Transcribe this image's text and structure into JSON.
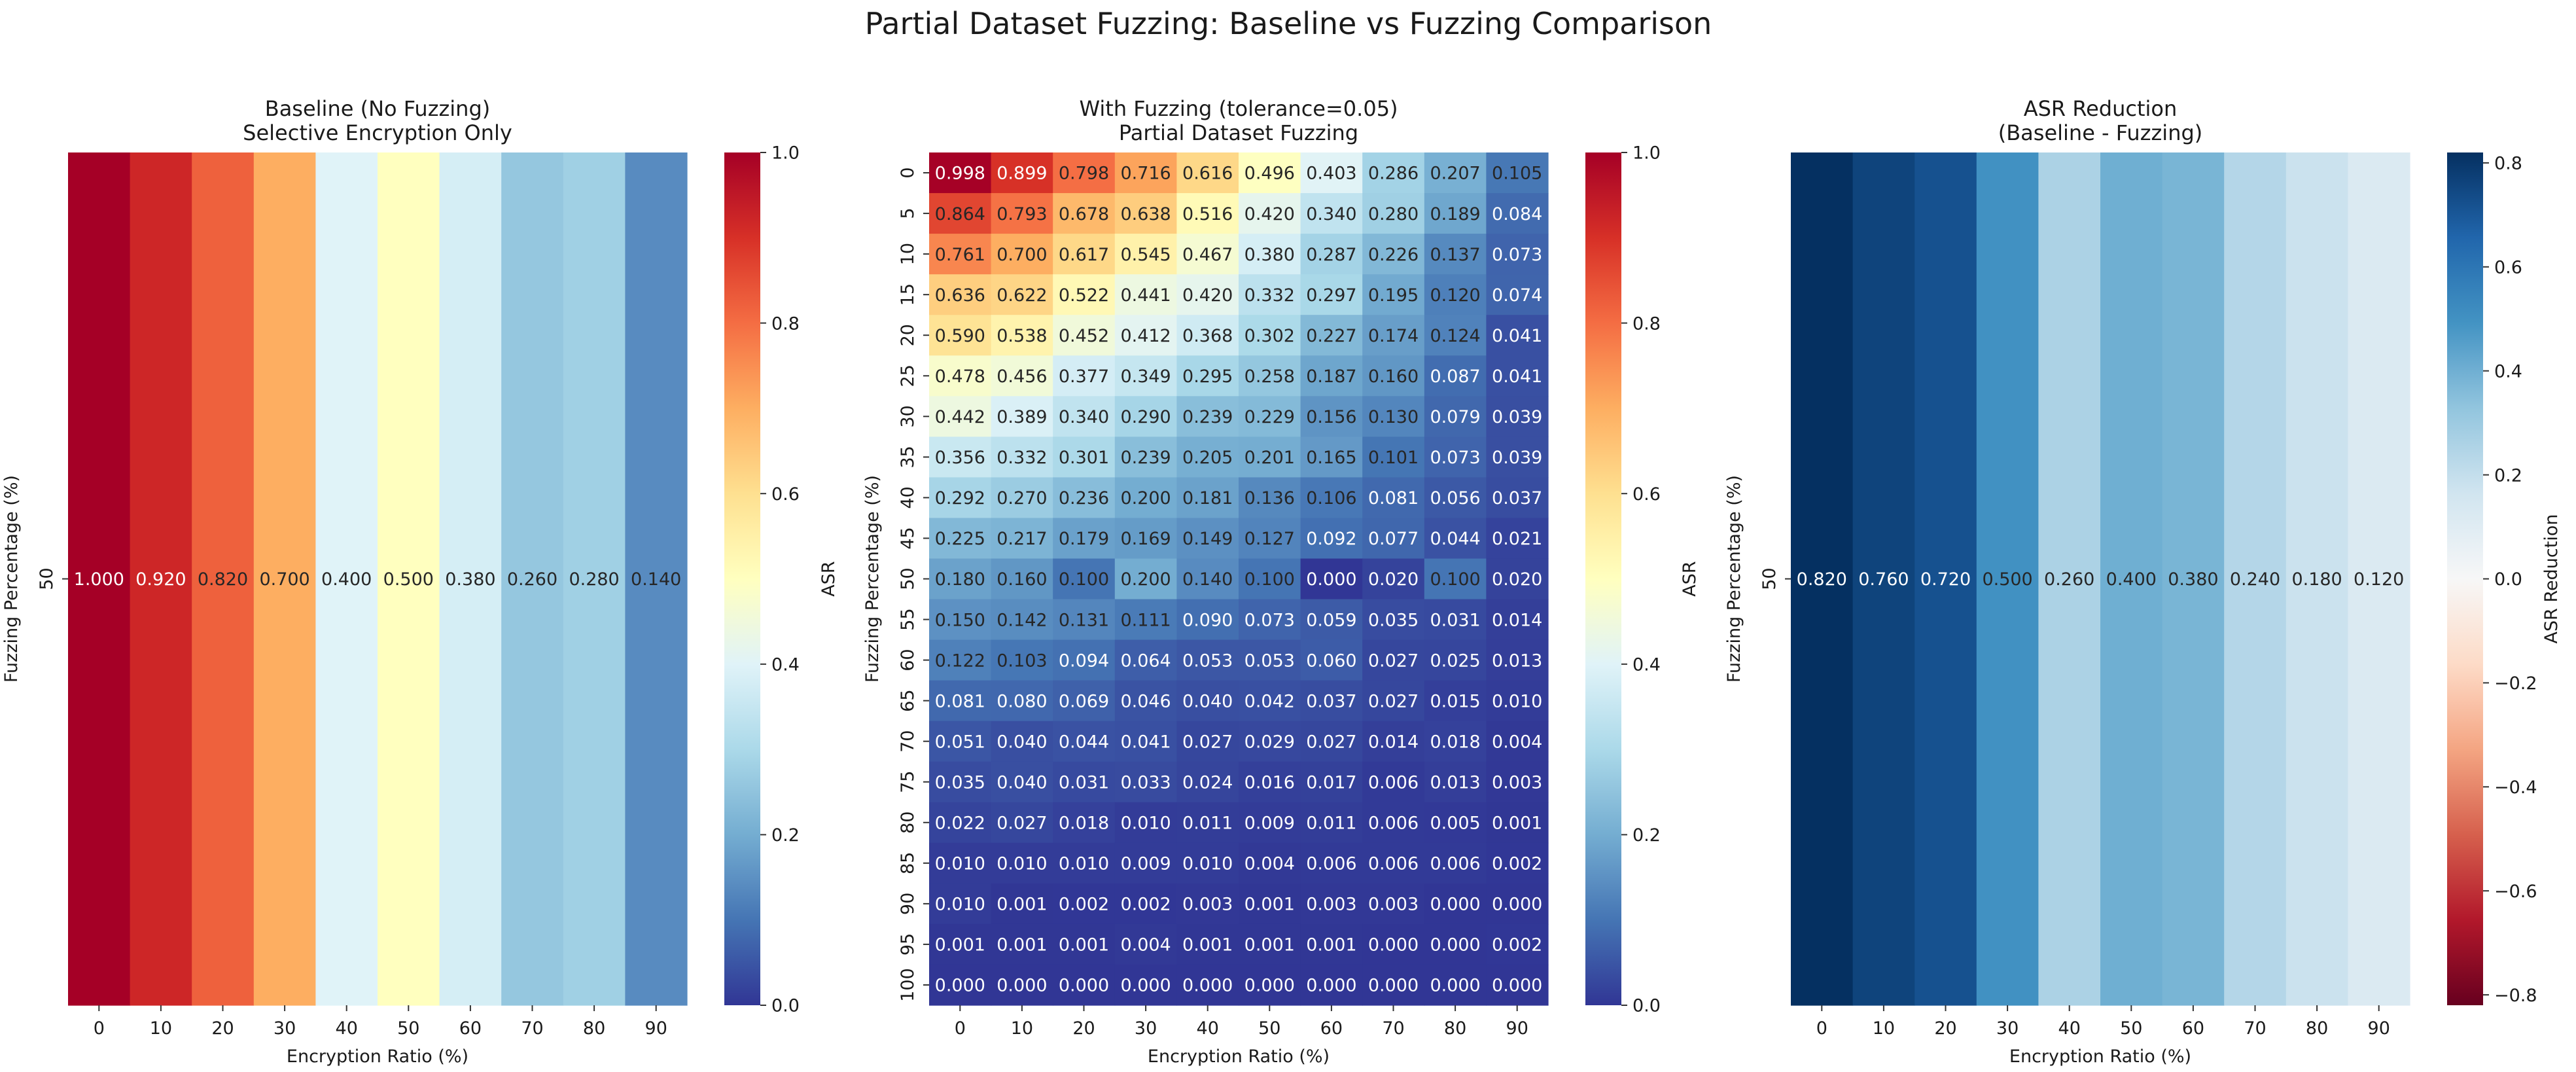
{
  "suptitle": "Partial Dataset Fuzzing: Baseline vs Fuzzing Comparison",
  "chart_data": [
    {
      "type": "heatmap",
      "title": "Baseline (No Fuzzing)\nSelective Encryption Only",
      "xlabel": "Encryption Ratio (%)",
      "ylabel": "Fuzzing Percentage (%)",
      "x": [
        0,
        10,
        20,
        30,
        40,
        50,
        60,
        70,
        80,
        90
      ],
      "y": [
        50
      ],
      "values": [
        [
          1.0,
          0.92,
          0.82,
          0.7,
          0.4,
          0.5,
          0.38,
          0.26,
          0.28,
          0.14
        ]
      ],
      "value_format": "0.000",
      "colormap": "RdYlBu_r",
      "vmin": 0.0,
      "vmax": 1.0,
      "colorbar_label": "ASR",
      "colorbar_ticks": [
        "0.0",
        "0.2",
        "0.4",
        "0.6",
        "0.8",
        "1.0"
      ]
    },
    {
      "type": "heatmap",
      "title": "With Fuzzing (tolerance=0.05)\nPartial Dataset Fuzzing",
      "xlabel": "Encryption Ratio (%)",
      "ylabel": "Fuzzing Percentage (%)",
      "x": [
        0,
        10,
        20,
        30,
        40,
        50,
        60,
        70,
        80,
        90
      ],
      "y": [
        0,
        5,
        10,
        15,
        20,
        25,
        30,
        35,
        40,
        45,
        50,
        55,
        60,
        65,
        70,
        75,
        80,
        85,
        90,
        95,
        100
      ],
      "values": [
        [
          0.998,
          0.899,
          0.798,
          0.716,
          0.616,
          0.496,
          0.403,
          0.286,
          0.207,
          0.105
        ],
        [
          0.864,
          0.793,
          0.678,
          0.638,
          0.516,
          0.42,
          0.34,
          0.28,
          0.189,
          0.084
        ],
        [
          0.761,
          0.7,
          0.617,
          0.545,
          0.467,
          0.38,
          0.287,
          0.226,
          0.137,
          0.073
        ],
        [
          0.636,
          0.622,
          0.522,
          0.441,
          0.42,
          0.332,
          0.297,
          0.195,
          0.12,
          0.074
        ],
        [
          0.59,
          0.538,
          0.452,
          0.412,
          0.368,
          0.302,
          0.227,
          0.174,
          0.124,
          0.041
        ],
        [
          0.478,
          0.456,
          0.377,
          0.349,
          0.295,
          0.258,
          0.187,
          0.16,
          0.087,
          0.041
        ],
        [
          0.442,
          0.389,
          0.34,
          0.29,
          0.239,
          0.229,
          0.156,
          0.13,
          0.079,
          0.039
        ],
        [
          0.356,
          0.332,
          0.301,
          0.239,
          0.205,
          0.201,
          0.165,
          0.101,
          0.073,
          0.039
        ],
        [
          0.292,
          0.27,
          0.236,
          0.2,
          0.181,
          0.136,
          0.106,
          0.081,
          0.056,
          0.037
        ],
        [
          0.225,
          0.217,
          0.179,
          0.169,
          0.149,
          0.127,
          0.092,
          0.077,
          0.044,
          0.021
        ],
        [
          0.18,
          0.16,
          0.1,
          0.2,
          0.14,
          0.1,
          0.0,
          0.02,
          0.1,
          0.02
        ],
        [
          0.15,
          0.142,
          0.131,
          0.111,
          0.09,
          0.073,
          0.059,
          0.035,
          0.031,
          0.014
        ],
        [
          0.122,
          0.103,
          0.094,
          0.064,
          0.053,
          0.053,
          0.06,
          0.027,
          0.025,
          0.013
        ],
        [
          0.081,
          0.08,
          0.069,
          0.046,
          0.04,
          0.042,
          0.037,
          0.027,
          0.015,
          0.01
        ],
        [
          0.051,
          0.04,
          0.044,
          0.041,
          0.027,
          0.029,
          0.027,
          0.014,
          0.018,
          0.004
        ],
        [
          0.035,
          0.04,
          0.031,
          0.033,
          0.024,
          0.016,
          0.017,
          0.006,
          0.013,
          0.003
        ],
        [
          0.022,
          0.027,
          0.018,
          0.01,
          0.011,
          0.009,
          0.011,
          0.006,
          0.005,
          0.001
        ],
        [
          0.01,
          0.01,
          0.01,
          0.009,
          0.01,
          0.004,
          0.006,
          0.006,
          0.006,
          0.002
        ],
        [
          0.01,
          0.001,
          0.002,
          0.002,
          0.003,
          0.001,
          0.003,
          0.003,
          0.0,
          0.0
        ],
        [
          0.001,
          0.001,
          0.001,
          0.004,
          0.001,
          0.001,
          0.001,
          0.0,
          0.0,
          0.002
        ],
        [
          0.0,
          0.0,
          0.0,
          0.0,
          0.0,
          0.0,
          0.0,
          0.0,
          0.0,
          0.0
        ]
      ],
      "value_format": "0.000",
      "colormap": "RdYlBu_r",
      "vmin": 0.0,
      "vmax": 1.0,
      "colorbar_label": "ASR",
      "colorbar_ticks": [
        "0.0",
        "0.2",
        "0.4",
        "0.6",
        "0.8",
        "1.0"
      ]
    },
    {
      "type": "heatmap",
      "title": "ASR Reduction\n(Baseline - Fuzzing)",
      "xlabel": "Encryption Ratio (%)",
      "ylabel": "Fuzzing Percentage (%)",
      "x": [
        0,
        10,
        20,
        30,
        40,
        50,
        60,
        70,
        80,
        90
      ],
      "y": [
        50
      ],
      "values": [
        [
          0.82,
          0.76,
          0.72,
          0.5,
          0.26,
          0.4,
          0.38,
          0.24,
          0.18,
          0.12
        ]
      ],
      "value_format": "0.000",
      "colormap": "RdBu",
      "vmin": -0.82,
      "vmax": 0.82,
      "colorbar_label": "ASR Reduction",
      "colorbar_ticks": [
        "-0.8",
        "-0.6",
        "-0.4",
        "-0.2",
        "0.0",
        "0.2",
        "0.4",
        "0.6",
        "0.8"
      ]
    }
  ]
}
